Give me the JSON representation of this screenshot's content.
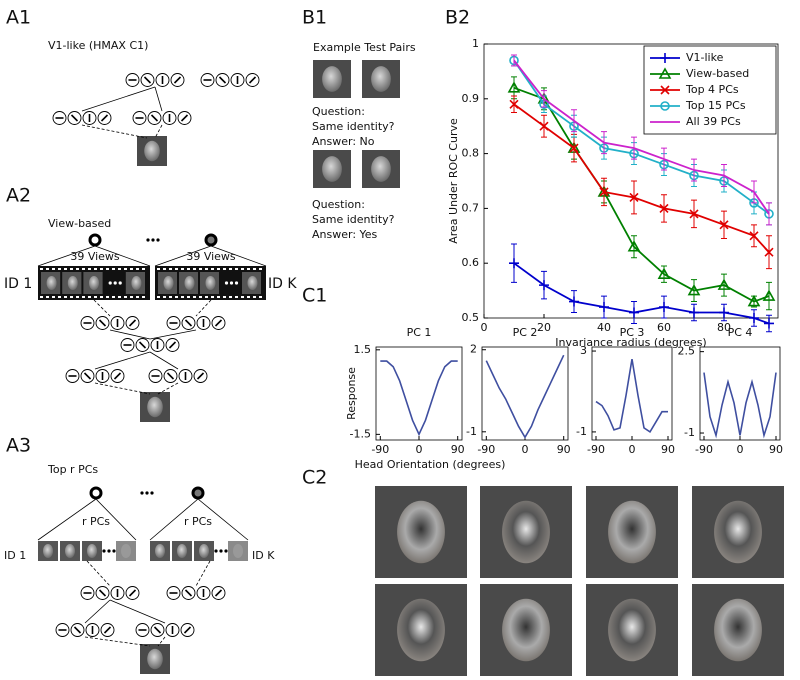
{
  "a1": {
    "label": "A1",
    "caption": "V1-like (HMAX C1)"
  },
  "a2": {
    "label": "A2",
    "caption": "View-based",
    "group_labels": [
      "39 Views",
      "39 Views"
    ],
    "ids": [
      "ID 1",
      "ID K"
    ]
  },
  "a3": {
    "label": "A3",
    "caption": "Top r PCs",
    "group_labels": [
      "r PCs",
      "r PCs"
    ],
    "ids": [
      "ID 1",
      "ID K"
    ]
  },
  "b1": {
    "label": "B1",
    "caption": "Example Test Pairs",
    "pairs": [
      {
        "lines": [
          "Question:",
          "Same identity?",
          "Answer: No"
        ]
      },
      {
        "lines": [
          "Question:",
          "Same identity?",
          "Answer: Yes"
        ]
      }
    ]
  },
  "b2": {
    "label": "B2"
  },
  "c1": {
    "label": "C1"
  },
  "c2": {
    "label": "C2"
  },
  "chart_data": [
    {
      "type": "line",
      "xlabel": "Invariance radius (degrees)",
      "ylabel": "Area Under ROC Curve",
      "x": [
        10,
        20,
        30,
        40,
        50,
        60,
        70,
        80,
        90,
        95
      ],
      "xlim": [
        0,
        98
      ],
      "ylim": [
        0.5,
        1
      ],
      "xticks": [
        0,
        20,
        40,
        60,
        80
      ],
      "yticks": [
        0.5,
        0.6,
        0.7,
        0.8,
        0.9,
        1
      ],
      "legend": "upper right",
      "series": [
        {
          "name": "V1-like",
          "color": "#0000cc",
          "marker": "plus",
          "values": [
            0.6,
            0.56,
            0.53,
            0.52,
            0.51,
            0.52,
            0.51,
            0.51,
            0.5,
            0.49
          ],
          "errors": [
            0.035,
            0.025,
            0.02,
            0.02,
            0.02,
            0.02,
            0.015,
            0.015,
            0.015,
            0.015
          ]
        },
        {
          "name": "View-based",
          "color": "#008000",
          "marker": "triangle",
          "values": [
            0.92,
            0.9,
            0.81,
            0.73,
            0.63,
            0.58,
            0.55,
            0.56,
            0.53,
            0.54
          ],
          "errors": [
            0.02,
            0.02,
            0.02,
            0.02,
            0.02,
            0.015,
            0.02,
            0.02,
            0.01,
            0.025
          ]
        },
        {
          "name": "Top 4 PCs",
          "color": "#e00000",
          "marker": "x",
          "values": [
            0.89,
            0.85,
            0.81,
            0.73,
            0.72,
            0.7,
            0.69,
            0.67,
            0.65,
            0.62
          ],
          "errors": [
            0.015,
            0.02,
            0.025,
            0.025,
            0.03,
            0.025,
            0.025,
            0.025,
            0.02,
            0.03
          ]
        },
        {
          "name": "Top 15 PCs",
          "color": "#22b0c8",
          "marker": "circle",
          "values": [
            0.97,
            0.89,
            0.85,
            0.81,
            0.8,
            0.78,
            0.76,
            0.75,
            0.71,
            0.69
          ],
          "errors": [
            0.01,
            0.015,
            0.02,
            0.02,
            0.02,
            0.02,
            0.02,
            0.02,
            0.02,
            0.02
          ]
        },
        {
          "name": "All 39 PCs",
          "color": "#cc22cc",
          "marker": "none",
          "values": [
            0.97,
            0.9,
            0.86,
            0.82,
            0.81,
            0.79,
            0.77,
            0.76,
            0.73,
            0.69
          ],
          "errors": [
            0.01,
            0.015,
            0.02,
            0.02,
            0.02,
            0.02,
            0.02,
            0.02,
            0.02,
            0.02
          ]
        }
      ]
    },
    {
      "type": "line",
      "title": "PC 1",
      "ylabel": "Response",
      "xlabel": "Head Orientation (degrees)",
      "color": "#3f4fa0",
      "x": [
        -90,
        -75,
        -60,
        -45,
        -30,
        -15,
        0,
        15,
        30,
        45,
        60,
        75,
        90
      ],
      "values": [
        1.1,
        1.1,
        0.9,
        0.4,
        -0.3,
        -1.0,
        -1.5,
        -1.0,
        -0.3,
        0.4,
        0.9,
        1.1,
        1.1
      ],
      "xlim": [
        -100,
        100
      ],
      "ylim": [
        -1.7,
        1.6
      ],
      "xticks": [
        -90,
        0,
        90
      ],
      "yticks": [
        -1.5,
        1.5
      ]
    },
    {
      "type": "line",
      "title": "PC 2",
      "color": "#3f4fa0",
      "x": [
        -90,
        -75,
        -60,
        -45,
        -30,
        -15,
        0,
        15,
        30,
        45,
        60,
        75,
        90
      ],
      "values": [
        1.6,
        1.1,
        0.6,
        0.2,
        -0.3,
        -0.8,
        -1.2,
        -0.8,
        -0.2,
        0.3,
        0.8,
        1.3,
        1.8
      ],
      "xlim": [
        -100,
        100
      ],
      "ylim": [
        -1.3,
        2.1
      ],
      "xticks": [
        -90,
        0,
        90
      ],
      "yticks": [
        -1,
        2
      ]
    },
    {
      "type": "line",
      "title": "PC 3",
      "color": "#3f4fa0",
      "x": [
        -90,
        -75,
        -60,
        -45,
        -30,
        -15,
        0,
        15,
        30,
        45,
        60,
        75,
        90
      ],
      "values": [
        0.5,
        0.3,
        -0.2,
        -0.9,
        -0.8,
        0.8,
        2.6,
        0.8,
        -0.8,
        -1.0,
        -0.5,
        0.0,
        0.0
      ],
      "xlim": [
        -100,
        100
      ],
      "ylim": [
        -1.4,
        3.2
      ],
      "xticks": [
        -90,
        0,
        90
      ],
      "yticks": [
        -1,
        3
      ]
    },
    {
      "type": "line",
      "title": "PC 4",
      "color": "#3f4fa0",
      "x": [
        -90,
        -75,
        -60,
        -45,
        -30,
        -15,
        0,
        15,
        30,
        45,
        60,
        75,
        90
      ],
      "values": [
        1.6,
        -0.3,
        -1.1,
        0.2,
        1.2,
        0.3,
        -1.1,
        0.3,
        1.2,
        0.2,
        -1.1,
        -0.3,
        1.6
      ],
      "xlim": [
        -100,
        100
      ],
      "ylim": [
        -1.3,
        2.7
      ],
      "xticks": [
        -90,
        0,
        90
      ],
      "yticks": [
        -1,
        2.5
      ]
    }
  ]
}
